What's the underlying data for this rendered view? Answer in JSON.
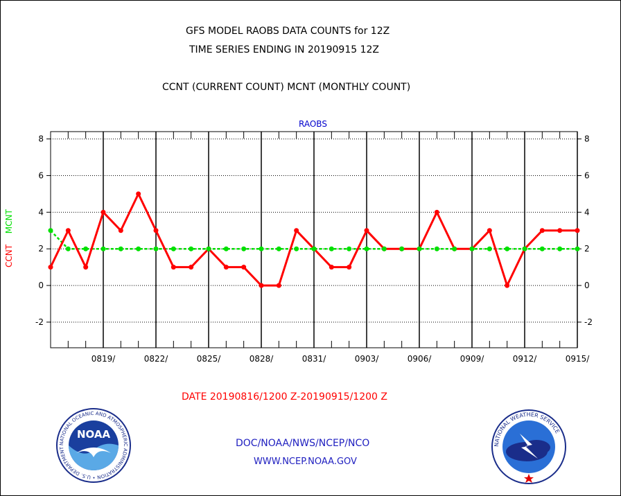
{
  "header": {
    "title_line1": "GFS MODEL RAOBS DATA COUNTS for 12Z",
    "title_line2": "TIME SERIES ENDING IN 20190915 12Z",
    "subtitle": "CCNT (CURRENT COUNT) MCNT (MONTHLY COUNT)"
  },
  "footer": {
    "date_range": "DATE 20190816/1200 Z-20190915/1200 Z",
    "org": "DOC/NOAA/NWS/NCEP/NCO",
    "url": "WWW.NCEP.NOAA.GOV"
  },
  "logos": {
    "noaa_text": "NOAA",
    "noaa_ring": "NATIONAL OCEANIC AND ATMOSPHERIC ADMINISTRATION • U.S. DEPARTMENT OF COMMERCE •",
    "nws_ring": "NATIONAL WEATHER SERVICE"
  },
  "colors": {
    "ccnt": "#ff0000",
    "mcnt": "#00e000",
    "axis_title": "#0000cc",
    "footer_blue": "#2020c0"
  },
  "chart_data": {
    "type": "line",
    "title": "RAOBS",
    "ylabel_left": [
      "CCNT",
      "MCNT"
    ],
    "ylim": [
      -3.4,
      8.4
    ],
    "yticks": [
      -2,
      0,
      2,
      4,
      6,
      8
    ],
    "grid": true,
    "x_dates": [
      "0816",
      "0817",
      "0818",
      "0819",
      "0820",
      "0821",
      "0822",
      "0823",
      "0824",
      "0825",
      "0826",
      "0827",
      "0828",
      "0829",
      "0830",
      "0831",
      "0901",
      "0902",
      "0903",
      "0904",
      "0905",
      "0906",
      "0907",
      "0908",
      "0909",
      "0910",
      "0911",
      "0912",
      "0913",
      "0914",
      "0915"
    ],
    "x_tick_labels": [
      "0819/",
      "0822/",
      "0825/",
      "0828/",
      "0831/",
      "0903/",
      "0906/",
      "0909/",
      "0912/",
      "0915/"
    ],
    "series": [
      {
        "name": "CCNT",
        "values": [
          1,
          3,
          1,
          4,
          3,
          5,
          3,
          1,
          1,
          2,
          1,
          1,
          0,
          0,
          3,
          2,
          1,
          1,
          3,
          2,
          2,
          2,
          4,
          2,
          2,
          3,
          0,
          2,
          3,
          3,
          3
        ]
      },
      {
        "name": "MCNT",
        "values": [
          3,
          2,
          2,
          2,
          2,
          2,
          2,
          2,
          2,
          2,
          2,
          2,
          2,
          2,
          2,
          2,
          2,
          2,
          2,
          2,
          2,
          2,
          2,
          2,
          2,
          2,
          2,
          2,
          2,
          2,
          2
        ]
      }
    ]
  }
}
